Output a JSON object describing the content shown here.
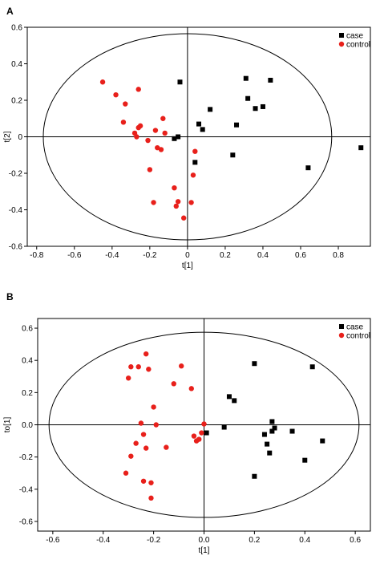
{
  "figure": {
    "colors": {
      "case": "#000000",
      "control": "#e8201b",
      "line": "#000000"
    }
  },
  "chart_data": [
    {
      "type": "scatter",
      "panel_label": "A",
      "xlabel": "t[1]",
      "ylabel": "t[2]",
      "xlim": [
        -0.85,
        0.97
      ],
      "ylim": [
        -0.6,
        0.6
      ],
      "xticks": [
        -0.8,
        -0.6,
        -0.4,
        -0.2,
        0,
        0.2,
        0.4,
        0.6,
        0.8
      ],
      "xtick_labels": [
        "-0.8",
        "-0.6",
        "-0.4",
        "-0.2",
        "0",
        "0.2",
        "0.4",
        "0.6",
        "0.8"
      ],
      "yticks": [
        -0.6,
        -0.4,
        -0.2,
        0,
        0.2,
        0.4,
        0.6
      ],
      "ytick_labels": [
        "-0.6",
        "-0.4",
        "-0.2",
        "0",
        "0.2",
        "0.4",
        "0.6"
      ],
      "ellipse": {
        "rx": 0.765,
        "ry": 0.565
      },
      "legend": {
        "position": "top-right",
        "entries": [
          "case",
          "control"
        ]
      },
      "series": [
        {
          "name": "case",
          "marker": "square",
          "color": "#000000",
          "x": [
            -0.04,
            -0.07,
            -0.05,
            0.06,
            0.08,
            0.12,
            0.04,
            0.24,
            0.26,
            0.31,
            0.32,
            0.36,
            0.4,
            0.44,
            0.64,
            0.92
          ],
          "y": [
            0.3,
            -0.01,
            0.0,
            0.07,
            0.04,
            0.15,
            -0.14,
            -0.1,
            0.065,
            0.32,
            0.21,
            0.155,
            0.165,
            0.31,
            -0.17,
            -0.06
          ]
        },
        {
          "name": "control",
          "marker": "circle",
          "color": "#e8201b",
          "x": [
            -0.45,
            -0.38,
            -0.33,
            -0.34,
            -0.26,
            -0.28,
            -0.26,
            -0.25,
            -0.27,
            -0.21,
            -0.17,
            -0.16,
            -0.13,
            -0.12,
            -0.14,
            -0.2,
            -0.18,
            -0.07,
            -0.06,
            -0.05,
            -0.02,
            0.03,
            0.04,
            0.02
          ],
          "y": [
            0.3,
            0.23,
            0.18,
            0.08,
            0.26,
            0.02,
            0.05,
            0.06,
            0.0,
            -0.02,
            0.035,
            -0.06,
            0.1,
            0.02,
            -0.07,
            -0.18,
            -0.36,
            -0.28,
            -0.38,
            -0.355,
            -0.445,
            -0.21,
            -0.08,
            -0.36
          ]
        }
      ]
    },
    {
      "type": "scatter",
      "panel_label": "B",
      "xlabel": "t[1]",
      "ylabel": "to[1]",
      "xlim": [
        -0.66,
        0.66
      ],
      "ylim": [
        -0.66,
        0.66
      ],
      "xticks": [
        -0.6,
        -0.4,
        -0.2,
        0,
        0.2,
        0.4,
        0.6
      ],
      "xtick_labels": [
        "-0.6",
        "-0.4",
        "-0.2",
        "0.0",
        "0.2",
        "0.4",
        "0.6"
      ],
      "yticks": [
        -0.6,
        -0.4,
        -0.2,
        0,
        0.2,
        0.4,
        0.6
      ],
      "yticks_labels_note": "",
      "ytick_labels": [
        "-0.6",
        "-0.4",
        "-0.2",
        "0.0",
        "0.2",
        "0.4",
        "0.6"
      ],
      "ellipse": {
        "rx": 0.615,
        "ry": 0.575
      },
      "legend": {
        "position": "top-right",
        "entries": [
          "case",
          "control"
        ]
      },
      "series": [
        {
          "name": "case",
          "marker": "square",
          "color": "#000000",
          "x": [
            0.01,
            0.08,
            0.1,
            0.12,
            0.2,
            0.2,
            0.24,
            0.25,
            0.26,
            0.27,
            0.28,
            0.27,
            0.35,
            0.4,
            0.43,
            0.47
          ],
          "y": [
            -0.05,
            -0.015,
            0.175,
            0.15,
            0.38,
            -0.32,
            -0.06,
            -0.12,
            -0.175,
            0.02,
            -0.02,
            -0.04,
            -0.04,
            -0.22,
            0.36,
            -0.1
          ]
        },
        {
          "name": "control",
          "marker": "circle",
          "color": "#e8201b",
          "x": [
            -0.3,
            -0.29,
            -0.26,
            -0.23,
            -0.22,
            -0.25,
            -0.24,
            -0.27,
            -0.29,
            -0.31,
            -0.24,
            -0.23,
            -0.21,
            -0.21,
            -0.2,
            -0.19,
            -0.15,
            -0.12,
            -0.09,
            -0.05,
            -0.04,
            -0.03,
            -0.02,
            0.0,
            -0.01
          ],
          "y": [
            0.29,
            0.36,
            0.36,
            0.44,
            0.345,
            0.01,
            -0.06,
            -0.115,
            -0.195,
            -0.3,
            -0.35,
            -0.145,
            -0.36,
            -0.455,
            0.11,
            0.0,
            -0.14,
            0.255,
            0.365,
            0.225,
            -0.07,
            -0.1,
            -0.09,
            0.005,
            -0.05
          ]
        }
      ]
    }
  ]
}
